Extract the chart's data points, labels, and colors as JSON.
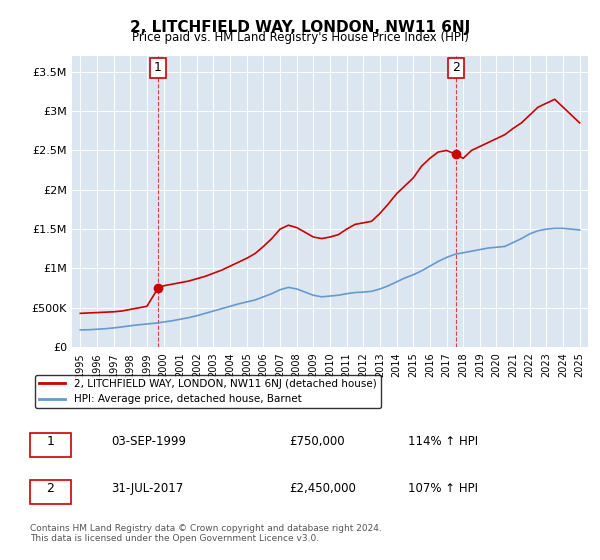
{
  "title": "2, LITCHFIELD WAY, LONDON, NW11 6NJ",
  "subtitle": "Price paid vs. HM Land Registry's House Price Index (HPI)",
  "background_color": "#dce6f1",
  "plot_bg_color": "#dce6f1",
  "red_line_color": "#cc0000",
  "blue_line_color": "#6699cc",
  "marker1_date_x": 1999.67,
  "marker1_y": 750000,
  "marker2_date_x": 2017.58,
  "marker2_y": 2450000,
  "ylim": [
    0,
    3700000
  ],
  "xlim": [
    1994.5,
    2025.5
  ],
  "yticks": [
    0,
    500000,
    1000000,
    1500000,
    2000000,
    2500000,
    3000000,
    3500000
  ],
  "ytick_labels": [
    "£0",
    "£500K",
    "£1M",
    "£1.5M",
    "£2M",
    "£2.5M",
    "£3M",
    "£3.5M"
  ],
  "xticks": [
    1995,
    1996,
    1997,
    1998,
    1999,
    2000,
    2001,
    2002,
    2003,
    2004,
    2005,
    2006,
    2007,
    2008,
    2009,
    2010,
    2011,
    2012,
    2013,
    2014,
    2015,
    2016,
    2017,
    2018,
    2019,
    2020,
    2021,
    2022,
    2023,
    2024,
    2025
  ],
  "legend_label_red": "2, LITCHFIELD WAY, LONDON, NW11 6NJ (detached house)",
  "legend_label_blue": "HPI: Average price, detached house, Barnet",
  "annotation1_label": "1",
  "annotation1_date": "03-SEP-1999",
  "annotation1_price": "£750,000",
  "annotation1_hpi": "114% ↑ HPI",
  "annotation2_label": "2",
  "annotation2_date": "31-JUL-2017",
  "annotation2_price": "£2,450,000",
  "annotation2_hpi": "107% ↑ HPI",
  "footer": "Contains HM Land Registry data © Crown copyright and database right 2024.\nThis data is licensed under the Open Government Licence v3.0.",
  "red_x": [
    1995.0,
    1995.5,
    1996.0,
    1996.5,
    1997.0,
    1997.5,
    1998.0,
    1998.5,
    1999.0,
    1999.67,
    2000.0,
    2000.5,
    2001.0,
    2001.5,
    2002.0,
    2002.5,
    2003.0,
    2003.5,
    2004.0,
    2004.5,
    2005.0,
    2005.5,
    2006.0,
    2006.5,
    2007.0,
    2007.5,
    2008.0,
    2008.5,
    2009.0,
    2009.5,
    2010.0,
    2010.5,
    2011.0,
    2011.5,
    2012.0,
    2012.5,
    2013.0,
    2013.5,
    2014.0,
    2014.5,
    2015.0,
    2015.5,
    2016.0,
    2016.5,
    2017.0,
    2017.58,
    2018.0,
    2018.5,
    2019.0,
    2019.5,
    2020.0,
    2020.5,
    2021.0,
    2021.5,
    2022.0,
    2022.5,
    2023.0,
    2023.5,
    2024.0,
    2024.5,
    2025.0
  ],
  "red_y": [
    430000,
    435000,
    440000,
    445000,
    450000,
    460000,
    480000,
    500000,
    520000,
    750000,
    780000,
    800000,
    820000,
    840000,
    870000,
    900000,
    940000,
    980000,
    1030000,
    1080000,
    1130000,
    1190000,
    1280000,
    1380000,
    1500000,
    1550000,
    1520000,
    1460000,
    1400000,
    1380000,
    1400000,
    1430000,
    1500000,
    1560000,
    1580000,
    1600000,
    1700000,
    1820000,
    1950000,
    2050000,
    2150000,
    2300000,
    2400000,
    2480000,
    2500000,
    2450000,
    2400000,
    2500000,
    2550000,
    2600000,
    2650000,
    2700000,
    2780000,
    2850000,
    2950000,
    3050000,
    3100000,
    3150000,
    3050000,
    2950000,
    2850000
  ],
  "blue_x": [
    1995.0,
    1995.5,
    1996.0,
    1996.5,
    1997.0,
    1997.5,
    1998.0,
    1998.5,
    1999.0,
    1999.5,
    2000.0,
    2000.5,
    2001.0,
    2001.5,
    2002.0,
    2002.5,
    2003.0,
    2003.5,
    2004.0,
    2004.5,
    2005.0,
    2005.5,
    2006.0,
    2006.5,
    2007.0,
    2007.5,
    2008.0,
    2008.5,
    2009.0,
    2009.5,
    2010.0,
    2010.5,
    2011.0,
    2011.5,
    2012.0,
    2012.5,
    2013.0,
    2013.5,
    2014.0,
    2014.5,
    2015.0,
    2015.5,
    2016.0,
    2016.5,
    2017.0,
    2017.5,
    2018.0,
    2018.5,
    2019.0,
    2019.5,
    2020.0,
    2020.5,
    2021.0,
    2021.5,
    2022.0,
    2022.5,
    2023.0,
    2023.5,
    2024.0,
    2024.5,
    2025.0
  ],
  "blue_y": [
    220000,
    222000,
    228000,
    235000,
    245000,
    258000,
    272000,
    285000,
    295000,
    305000,
    320000,
    335000,
    355000,
    375000,
    400000,
    430000,
    460000,
    490000,
    520000,
    550000,
    575000,
    600000,
    640000,
    680000,
    730000,
    760000,
    740000,
    700000,
    660000,
    640000,
    650000,
    660000,
    680000,
    695000,
    700000,
    710000,
    740000,
    780000,
    830000,
    880000,
    920000,
    970000,
    1030000,
    1090000,
    1140000,
    1180000,
    1200000,
    1220000,
    1240000,
    1260000,
    1270000,
    1280000,
    1330000,
    1380000,
    1440000,
    1480000,
    1500000,
    1510000,
    1510000,
    1500000,
    1490000
  ]
}
